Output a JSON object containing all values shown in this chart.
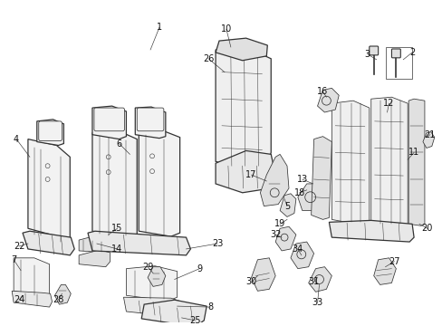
{
  "background_color": "#ffffff",
  "line_color": "#333333",
  "label_color": "#111111",
  "fig_width": 4.89,
  "fig_height": 3.6,
  "dpi": 100,
  "label_fontsize": 7.0,
  "lw_main": 0.9,
  "lw_thin": 0.55,
  "lw_detail": 0.35,
  "fc_seat": "#f2f2f2",
  "fc_cushion": "#e8e8e8",
  "fc_frame": "#efefef",
  "fc_metal": "#e0e0e0",
  "fc_dark": "#d8d8d8"
}
